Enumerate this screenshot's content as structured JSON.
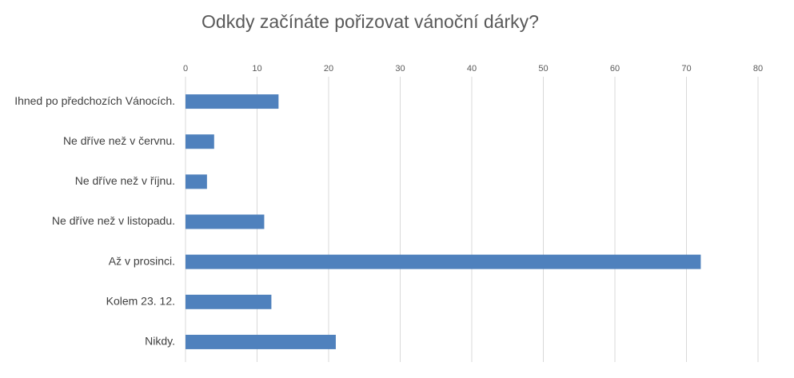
{
  "chart_data": {
    "type": "bar",
    "orientation": "horizontal",
    "title": "Odkdy začínáte pořizovat vánoční dárky?",
    "categories": [
      "Ihned po předchozích Vánocích.",
      "Ne dříve než v červnu.",
      "Ne dříve než v říjnu.",
      "Ne dříve než v listopadu.",
      "Až v prosinci.",
      "Kolem 23. 12.",
      "Nikdy."
    ],
    "values": [
      13,
      4,
      3,
      11,
      72,
      12,
      21
    ],
    "color": "#4f81bd",
    "xlim": [
      0,
      80
    ],
    "xticks": [
      0,
      10,
      20,
      30,
      40,
      50,
      60,
      70,
      80
    ],
    "grid": true
  }
}
